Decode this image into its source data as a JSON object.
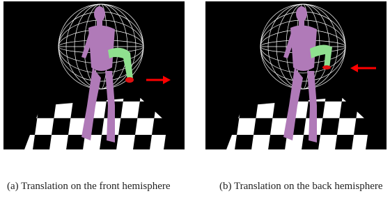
{
  "subfigures": [
    {
      "caption": "(a) Translation on the front hemisphere"
    },
    {
      "caption": "(b) Translation on the back hemisphere"
    }
  ]
}
